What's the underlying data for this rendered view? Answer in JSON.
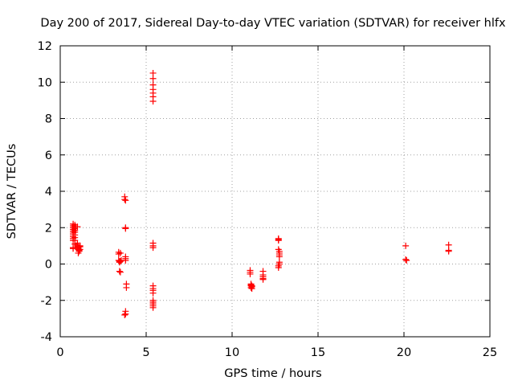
{
  "chart_data": {
    "type": "scatter",
    "title": "Day 200 of 2017, Sidereal Day-to-day VTEC variation (SDTVAR) for receiver hlfx",
    "xlabel": "GPS time / hours",
    "ylabel": "SDTVAR / TECUs",
    "xlim": [
      0,
      25
    ],
    "ylim": [
      -4,
      12
    ],
    "xticks": [
      "0",
      "5",
      "10",
      "15",
      "20",
      "25"
    ],
    "yticks": [
      "-4",
      "-2",
      "0",
      "2",
      "4",
      "6",
      "8",
      "10",
      "12"
    ],
    "grid": true,
    "marker": "plus",
    "color": "#ff0000",
    "series": [
      {
        "name": "SDTVAR",
        "x": [
          0.75,
          0.75,
          0.75,
          0.75,
          0.75,
          0.75,
          0.75,
          0.75,
          0.75,
          0.75,
          0.75,
          0.75,
          0.85,
          0.85,
          0.85,
          0.85,
          0.85,
          0.85,
          0.85,
          0.85,
          0.85,
          1.0,
          1.0,
          1.0,
          1.0,
          1.05,
          1.05,
          1.05,
          1.05,
          1.1,
          1.1,
          1.1,
          1.1,
          1.15,
          1.15,
          1.15,
          1.05,
          3.4,
          3.4,
          3.4,
          3.45,
          3.45,
          3.45,
          3.5,
          3.5,
          3.55,
          3.5,
          3.75,
          3.75,
          3.8,
          3.8,
          3.8,
          3.8,
          3.8,
          3.8,
          3.85,
          3.85,
          3.8,
          3.8,
          3.75,
          5.4,
          5.4,
          5.4,
          5.4,
          5.4,
          5.4,
          5.4,
          5.4,
          5.4,
          5.4,
          5.4,
          5.4,
          5.4,
          5.4,
          5.4,
          5.4,
          5.4,
          5.4,
          5.4,
          11.05,
          11.05,
          11.05,
          11.1,
          11.1,
          11.1,
          11.1,
          11.15,
          11.15,
          11.15,
          11.8,
          11.8,
          11.8,
          11.8,
          11.8,
          12.7,
          12.7,
          12.7,
          12.7,
          12.75,
          12.75,
          12.75,
          12.75,
          12.75,
          12.75,
          12.7,
          12.7,
          20.1,
          20.1,
          20.15,
          22.6,
          22.6,
          22.6
        ],
        "y": [
          2.2,
          2.1,
          2.0,
          1.9,
          1.8,
          1.7,
          1.6,
          1.5,
          1.4,
          1.3,
          0.9,
          0.85,
          2.15,
          2.05,
          1.95,
          1.85,
          1.75,
          1.6,
          1.45,
          1.3,
          1.1,
          2.05,
          1.15,
          1.05,
          1.0,
          0.95,
          0.9,
          0.85,
          0.8,
          0.78,
          0.75,
          0.72,
          0.7,
          1.0,
          0.95,
          0.8,
          0.6,
          0.65,
          0.55,
          0.2,
          0.15,
          0.1,
          -0.4,
          -0.45,
          0.15,
          0.2,
          0.6,
          3.7,
          3.55,
          3.5,
          2.0,
          1.95,
          0.4,
          0.3,
          0.2,
          -1.1,
          -1.3,
          -2.6,
          -2.75,
          -2.8,
          10.5,
          10.2,
          9.85,
          9.6,
          9.4,
          9.2,
          8.95,
          1.15,
          1.0,
          0.9,
          -1.2,
          -1.35,
          -1.45,
          -1.6,
          -2.0,
          -2.1,
          -2.2,
          -2.3,
          -2.4,
          -0.35,
          -0.45,
          -0.55,
          -1.1,
          -1.15,
          -1.2,
          -1.3,
          -1.25,
          -1.2,
          -1.35,
          -0.4,
          -0.6,
          -0.7,
          -0.8,
          -0.85,
          1.4,
          1.35,
          1.3,
          0.8,
          0.7,
          0.6,
          0.5,
          0.4,
          0.1,
          0.0,
          -0.1,
          -0.2,
          1.0,
          0.25,
          0.2,
          1.05,
          0.75,
          0.7
        ]
      }
    ]
  }
}
